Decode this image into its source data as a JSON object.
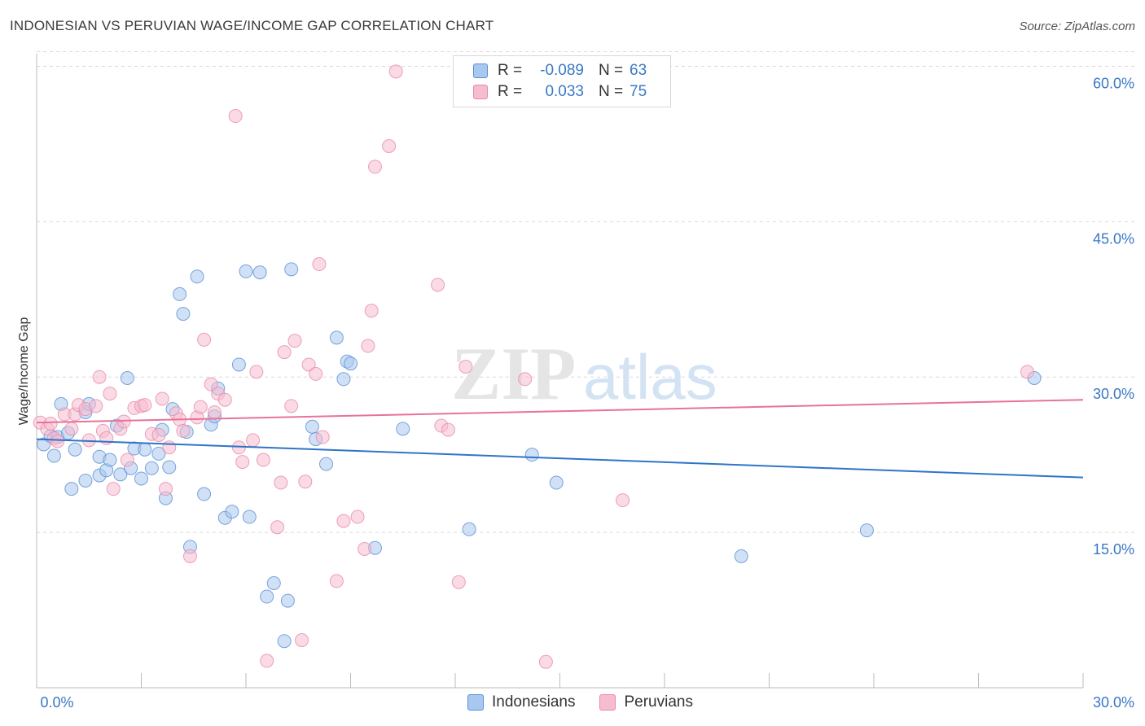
{
  "title": "INDONESIAN VS PERUVIAN WAGE/INCOME GAP CORRELATION CHART",
  "source": "Source: ZipAtlas.com",
  "watermark": {
    "zip": "ZIP",
    "atlas": "atlas"
  },
  "legend_top": [
    {
      "r_label": "R =",
      "r_value": "-0.089",
      "n_label": "N =",
      "n_value": "63"
    },
    {
      "r_label": "R =",
      "r_value": "0.033",
      "n_label": "N =",
      "n_value": "75"
    }
  ],
  "colors": {
    "indonesians_fill": "#a9c8ef",
    "indonesians_stroke": "#5a8fd6",
    "indonesians_line": "#2f74c8",
    "peruvians_fill": "#f6bcd0",
    "peruvians_stroke": "#e889a9",
    "peruvians_line": "#e8729a",
    "tick_label": "#3a78c6",
    "grid": "#d9d9d9"
  },
  "chart_data": {
    "type": "scatter",
    "title": "INDONESIAN VS PERUVIAN WAGE/INCOME GAP CORRELATION CHART",
    "xlabel": "",
    "ylabel": "Wage/Income Gap",
    "xlim": [
      0,
      30
    ],
    "ylim": [
      0,
      60.9
    ],
    "x_tick_labels": [
      "0.0%",
      "30.0%"
    ],
    "y_ticks": [
      15,
      30,
      45,
      60
    ],
    "y_tick_labels": [
      "15.0%",
      "30.0%",
      "45.0%",
      "60.0%"
    ],
    "grid": true,
    "legend_position": "bottom-center",
    "series": [
      {
        "name": "Indonesians",
        "trend": {
          "x": [
            0,
            30
          ],
          "y": [
            24.0,
            20.3
          ]
        },
        "points": [
          [
            0.2,
            23.5
          ],
          [
            0.4,
            24.3
          ],
          [
            0.5,
            22.4
          ],
          [
            0.6,
            24.2
          ],
          [
            0.7,
            27.4
          ],
          [
            0.9,
            24.6
          ],
          [
            1.0,
            19.2
          ],
          [
            1.1,
            23.0
          ],
          [
            1.4,
            26.6
          ],
          [
            1.4,
            20.0
          ],
          [
            1.5,
            27.4
          ],
          [
            1.8,
            22.3
          ],
          [
            1.8,
            20.5
          ],
          [
            2.0,
            21.0
          ],
          [
            2.1,
            22.0
          ],
          [
            2.3,
            25.3
          ],
          [
            2.4,
            20.6
          ],
          [
            2.6,
            29.9
          ],
          [
            2.7,
            21.2
          ],
          [
            2.8,
            23.1
          ],
          [
            3.0,
            20.2
          ],
          [
            3.1,
            23.0
          ],
          [
            3.3,
            21.2
          ],
          [
            3.5,
            22.6
          ],
          [
            3.6,
            24.9
          ],
          [
            3.7,
            18.3
          ],
          [
            3.8,
            21.3
          ],
          [
            3.9,
            26.9
          ],
          [
            4.1,
            38.0
          ],
          [
            4.2,
            36.1
          ],
          [
            4.3,
            24.7
          ],
          [
            4.4,
            13.6
          ],
          [
            4.6,
            39.7
          ],
          [
            4.8,
            18.7
          ],
          [
            5.0,
            25.4
          ],
          [
            5.1,
            26.2
          ],
          [
            5.2,
            28.9
          ],
          [
            5.4,
            16.4
          ],
          [
            5.6,
            17.0
          ],
          [
            5.8,
            31.2
          ],
          [
            6.0,
            40.2
          ],
          [
            6.1,
            16.5
          ],
          [
            6.4,
            40.1
          ],
          [
            6.6,
            8.8
          ],
          [
            6.8,
            10.1
          ],
          [
            7.1,
            4.5
          ],
          [
            7.2,
            8.4
          ],
          [
            7.3,
            40.4
          ],
          [
            7.9,
            25.2
          ],
          [
            8.0,
            24.0
          ],
          [
            8.3,
            21.6
          ],
          [
            8.6,
            33.8
          ],
          [
            8.8,
            29.8
          ],
          [
            8.9,
            31.5
          ],
          [
            9.0,
            31.3
          ],
          [
            9.7,
            13.5
          ],
          [
            10.5,
            25.0
          ],
          [
            12.4,
            15.3
          ],
          [
            14.2,
            22.5
          ],
          [
            14.9,
            19.8
          ],
          [
            20.2,
            12.7
          ],
          [
            23.8,
            15.2
          ],
          [
            28.6,
            29.9
          ]
        ]
      },
      {
        "name": "Peruvians",
        "trend": {
          "x": [
            0,
            30
          ],
          "y": [
            25.6,
            27.8
          ]
        },
        "points": [
          [
            0.1,
            25.6
          ],
          [
            0.3,
            25.0
          ],
          [
            0.4,
            25.5
          ],
          [
            0.5,
            24.1
          ],
          [
            0.6,
            23.8
          ],
          [
            0.8,
            26.4
          ],
          [
            1.0,
            25.0
          ],
          [
            1.1,
            26.4
          ],
          [
            1.2,
            27.3
          ],
          [
            1.4,
            26.9
          ],
          [
            1.5,
            23.9
          ],
          [
            1.7,
            27.2
          ],
          [
            1.8,
            30.0
          ],
          [
            1.9,
            24.8
          ],
          [
            2.0,
            24.1
          ],
          [
            2.1,
            28.4
          ],
          [
            2.2,
            19.2
          ],
          [
            2.4,
            25.0
          ],
          [
            2.5,
            25.7
          ],
          [
            2.6,
            22.0
          ],
          [
            2.8,
            27.0
          ],
          [
            3.0,
            27.2
          ],
          [
            3.1,
            27.3
          ],
          [
            3.3,
            24.5
          ],
          [
            3.5,
            24.4
          ],
          [
            3.6,
            27.9
          ],
          [
            3.7,
            19.2
          ],
          [
            3.8,
            23.2
          ],
          [
            4.0,
            26.5
          ],
          [
            4.1,
            25.9
          ],
          [
            4.2,
            24.8
          ],
          [
            4.4,
            12.7
          ],
          [
            4.6,
            26.1
          ],
          [
            4.7,
            27.1
          ],
          [
            4.8,
            33.6
          ],
          [
            5.0,
            29.3
          ],
          [
            5.1,
            26.6
          ],
          [
            5.2,
            28.4
          ],
          [
            5.4,
            27.8
          ],
          [
            5.8,
            23.2
          ],
          [
            5.9,
            21.8
          ],
          [
            6.2,
            23.9
          ],
          [
            6.3,
            30.5
          ],
          [
            6.5,
            22.0
          ],
          [
            6.6,
            2.6
          ],
          [
            6.9,
            15.5
          ],
          [
            7.0,
            19.8
          ],
          [
            7.1,
            32.4
          ],
          [
            7.3,
            27.2
          ],
          [
            7.4,
            33.5
          ],
          [
            7.6,
            4.6
          ],
          [
            7.7,
            19.9
          ],
          [
            7.8,
            31.2
          ],
          [
            8.0,
            30.3
          ],
          [
            8.1,
            40.9
          ],
          [
            8.2,
            24.2
          ],
          [
            8.6,
            10.3
          ],
          [
            8.8,
            16.1
          ],
          [
            9.2,
            16.5
          ],
          [
            9.4,
            13.4
          ],
          [
            9.5,
            33.0
          ],
          [
            9.6,
            36.4
          ],
          [
            9.7,
            50.3
          ],
          [
            10.1,
            52.3
          ],
          [
            10.3,
            59.5
          ],
          [
            11.5,
            38.9
          ],
          [
            11.6,
            25.3
          ],
          [
            11.8,
            24.9
          ],
          [
            12.1,
            10.2
          ],
          [
            12.3,
            31.0
          ],
          [
            14.0,
            29.8
          ],
          [
            14.6,
            2.5
          ],
          [
            16.8,
            18.1
          ],
          [
            28.4,
            30.5
          ],
          [
            5.7,
            55.2
          ]
        ]
      }
    ]
  }
}
